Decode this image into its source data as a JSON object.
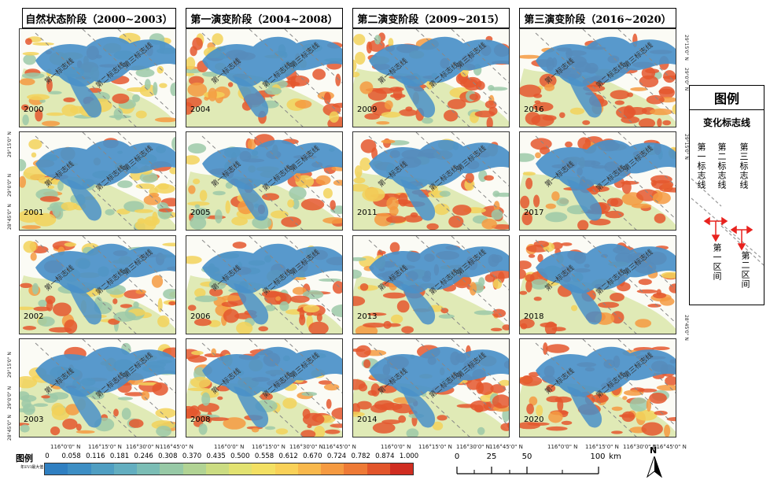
{
  "columns": [
    {
      "title": "自然状态阶段（2000~2003）",
      "years": [
        "2000",
        "2001",
        "2002",
        "2003"
      ]
    },
    {
      "title": "第一演变阶段（2004~2008）",
      "years": [
        "2004",
        "2005",
        "2006",
        "2008"
      ]
    },
    {
      "title": "第二演变阶段（2009~2015）",
      "years": [
        "2009",
        "2011",
        "2013",
        "2014"
      ]
    },
    {
      "title": "第三演变阶段（2016~2020）",
      "years": [
        "2016",
        "2017",
        "2018",
        "2020"
      ]
    }
  ],
  "line_labels": [
    "第一标志线",
    "第二标志线",
    "第三标志线"
  ],
  "longitude_ticks": [
    "116°0'0\" N",
    "116°15'0\" N",
    "116°30'0\" N",
    "116°45'0\" N"
  ],
  "latitude_ticks": [
    "29°15'0\" N",
    "29°0'0\" N",
    "28°45'0\" N"
  ],
  "legend": {
    "title": "图例",
    "subtitle": "变化标志线",
    "lines": [
      "第一标志线",
      "第二标志线",
      "第三标志线"
    ],
    "zones": [
      "第一区间",
      "第二区间"
    ],
    "zone_arrow_color": "#e8231f"
  },
  "colorbar": {
    "label": "图例",
    "sublabel": "年EVI最大值",
    "ticks": [
      "0",
      "0.058",
      "0.116",
      "0.181",
      "0.246",
      "0.308",
      "0.370",
      "0.435",
      "0.500",
      "0.558",
      "0.612",
      "0.670",
      "0.724",
      "0.782",
      "0.874",
      "1.000"
    ],
    "colors": [
      "#2f7fc1",
      "#3d8ec4",
      "#4f9ec2",
      "#63aec0",
      "#7bbdb5",
      "#97c9a6",
      "#b1d394",
      "#cbdc82",
      "#e2e271",
      "#f3e063",
      "#f9d158",
      "#f8b84c",
      "#f59a41",
      "#ee7a36",
      "#e2552b",
      "#d02d21"
    ]
  },
  "scalebar": {
    "ticks": [
      "0",
      "25",
      "50",
      "100"
    ],
    "unit": "km"
  },
  "north_label": "N",
  "colors": {
    "water": "#4a90c8",
    "veg_low": "#9cc9a8",
    "veg_mid": "#f2d25a",
    "veg_high": "#e4572e",
    "land_bg": "#fbfbf5"
  }
}
